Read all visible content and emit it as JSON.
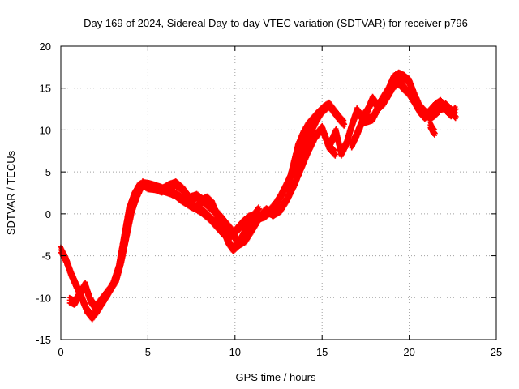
{
  "chart_data": {
    "type": "scatter",
    "title": "Day 169 of 2024, Sidereal Day-to-day VTEC variation (SDTVAR) for receiver p796",
    "xlabel": "GPS time / hours",
    "ylabel": "SDTVAR / TECUs",
    "xlim": [
      0,
      25
    ],
    "ylim": [
      -15,
      20
    ],
    "x_ticks": [
      0,
      5,
      10,
      15,
      20,
      25
    ],
    "y_ticks": [
      -15,
      -10,
      -5,
      0,
      5,
      10,
      15,
      20
    ],
    "x_tick_labels": [
      "0",
      "5",
      "10",
      "15",
      "20",
      "25"
    ],
    "y_tick_labels": [
      "-15",
      "-10",
      "-5",
      "0",
      "5",
      "10",
      "15",
      "20"
    ],
    "grid": true,
    "marker": "+",
    "series": [
      {
        "name": "SDTVAR",
        "color": "#ff0000",
        "traces": [
          {
            "x": [
              0.0,
              0.3,
              0.6,
              0.9,
              1.2,
              1.5,
              1.8,
              2.1,
              2.4,
              2.7,
              3.0,
              3.3,
              3.6,
              3.9,
              4.2,
              4.5,
              4.8,
              5.1,
              5.4,
              5.7,
              6.0,
              6.3,
              6.6,
              6.9,
              7.2,
              7.5,
              7.8,
              8.1,
              8.4,
              8.7,
              9.0,
              9.3,
              9.6,
              9.9,
              10.2,
              10.5,
              10.8,
              11.1,
              11.4,
              11.7,
              12.0,
              12.3,
              12.6,
              12.9,
              13.2,
              13.5,
              13.8,
              14.1,
              14.4,
              14.7,
              15.0,
              15.3
            ],
            "y": [
              -4.3,
              -5.5,
              -7.2,
              -8.6,
              -10.0,
              -11.5,
              -12.3,
              -11.5,
              -10.5,
              -9.5,
              -8.4,
              -6.5,
              -3.0,
              0.5,
              2.2,
              3.3,
              3.5,
              3.4,
              3.2,
              3.0,
              2.8,
              2.6,
              2.3,
              1.8,
              1.4,
              1.0,
              0.7,
              0.3,
              -0.2,
              -0.8,
              -1.5,
              -2.2,
              -2.7,
              -2.4,
              -1.7,
              -1.0,
              -0.5,
              -0.3,
              -0.4,
              -0.2,
              0.3,
              1.0,
              2.0,
              3.2,
              4.5,
              5.8,
              7.2,
              8.6,
              10.0,
              11.3,
              12.3,
              12.8
            ]
          },
          {
            "x": [
              0.5,
              0.8,
              1.1,
              1.4,
              1.7,
              2.0,
              2.3,
              2.6,
              2.9,
              3.2,
              3.5,
              3.8,
              4.1,
              4.4,
              4.7,
              5.0,
              5.4,
              5.8,
              6.2,
              6.6,
              7.0,
              7.4,
              7.8,
              8.2,
              8.6,
              9.0,
              9.4,
              9.8,
              10.2,
              10.6,
              11.0,
              11.4,
              11.8,
              12.2,
              12.6,
              13.0,
              13.4,
              13.8,
              14.2,
              14.6,
              15.0,
              15.4,
              15.8
            ],
            "y": [
              -10.3,
              -10.6,
              -9.5,
              -8.5,
              -10.3,
              -11.2,
              -10.4,
              -9.6,
              -8.8,
              -7.8,
              -5.5,
              -2.5,
              0.5,
              2.3,
              3.6,
              3.2,
              3.1,
              2.8,
              3.3,
              3.6,
              2.9,
              1.8,
              2.1,
              1.5,
              0.8,
              0.0,
              -1.0,
              -2.0,
              -3.6,
              -3.1,
              -1.8,
              -0.4,
              0.4,
              0.0,
              0.5,
              1.8,
              3.5,
              5.5,
              7.5,
              9.2,
              10.2,
              8.0,
              7.1
            ]
          },
          {
            "x": [
              7.8,
              8.1,
              8.4,
              8.7,
              9.0,
              9.3,
              9.6,
              9.9,
              10.2,
              10.5,
              10.8,
              11.1,
              11.4
            ],
            "y": [
              0.8,
              1.5,
              1.8,
              1.2,
              -0.3,
              -1.8,
              -3.3,
              -4.2,
              -3.6,
              -2.4,
              -1.2,
              -0.2,
              0.6
            ]
          },
          {
            "x": [
              13.0,
              13.3,
              13.6,
              13.9,
              14.2,
              14.5,
              14.8,
              15.1,
              15.4,
              15.7,
              16.0,
              16.3
            ],
            "y": [
              3.0,
              5.5,
              8.0,
              9.5,
              10.6,
              11.3,
              12.0,
              12.6,
              13.0,
              12.2,
              11.4,
              10.7
            ]
          },
          {
            "x": [
              15.5,
              15.8,
              16.1,
              16.4,
              16.7,
              17.0,
              17.3,
              17.6,
              17.9,
              18.2,
              18.5,
              18.8,
              19.1,
              19.4,
              19.7,
              20.0,
              20.3,
              20.6,
              20.9,
              21.2,
              21.5,
              21.8,
              22.1,
              22.4,
              22.7
            ],
            "y": [
              8.5,
              9.8,
              7.2,
              8.4,
              10.5,
              12.3,
              11.5,
              12.3,
              13.7,
              12.8,
              13.8,
              14.8,
              16.2,
              16.6,
              16.3,
              15.8,
              14.2,
              12.8,
              12.1,
              11.5,
              12.0,
              12.6,
              12.9,
              12.3,
              11.6
            ]
          },
          {
            "x": [
              16.7,
              17.0,
              17.3,
              17.6,
              17.9,
              18.2,
              18.5,
              18.8,
              19.1,
              19.4,
              19.7,
              20.0,
              20.3,
              20.6,
              20.9,
              21.2,
              21.5,
              21.8,
              22.1,
              22.4,
              22.7
            ],
            "y": [
              8.2,
              9.5,
              11.0,
              11.2,
              11.4,
              12.6,
              13.2,
              14.2,
              15.3,
              15.7,
              15.0,
              14.4,
              13.4,
              12.3,
              11.6,
              12.2,
              12.9,
              13.3,
              12.5,
              11.9,
              12.5
            ]
          },
          {
            "x": [
              21.2,
              21.35,
              21.5
            ],
            "y": [
              10.6,
              10.0,
              9.6
            ]
          }
        ]
      }
    ]
  }
}
